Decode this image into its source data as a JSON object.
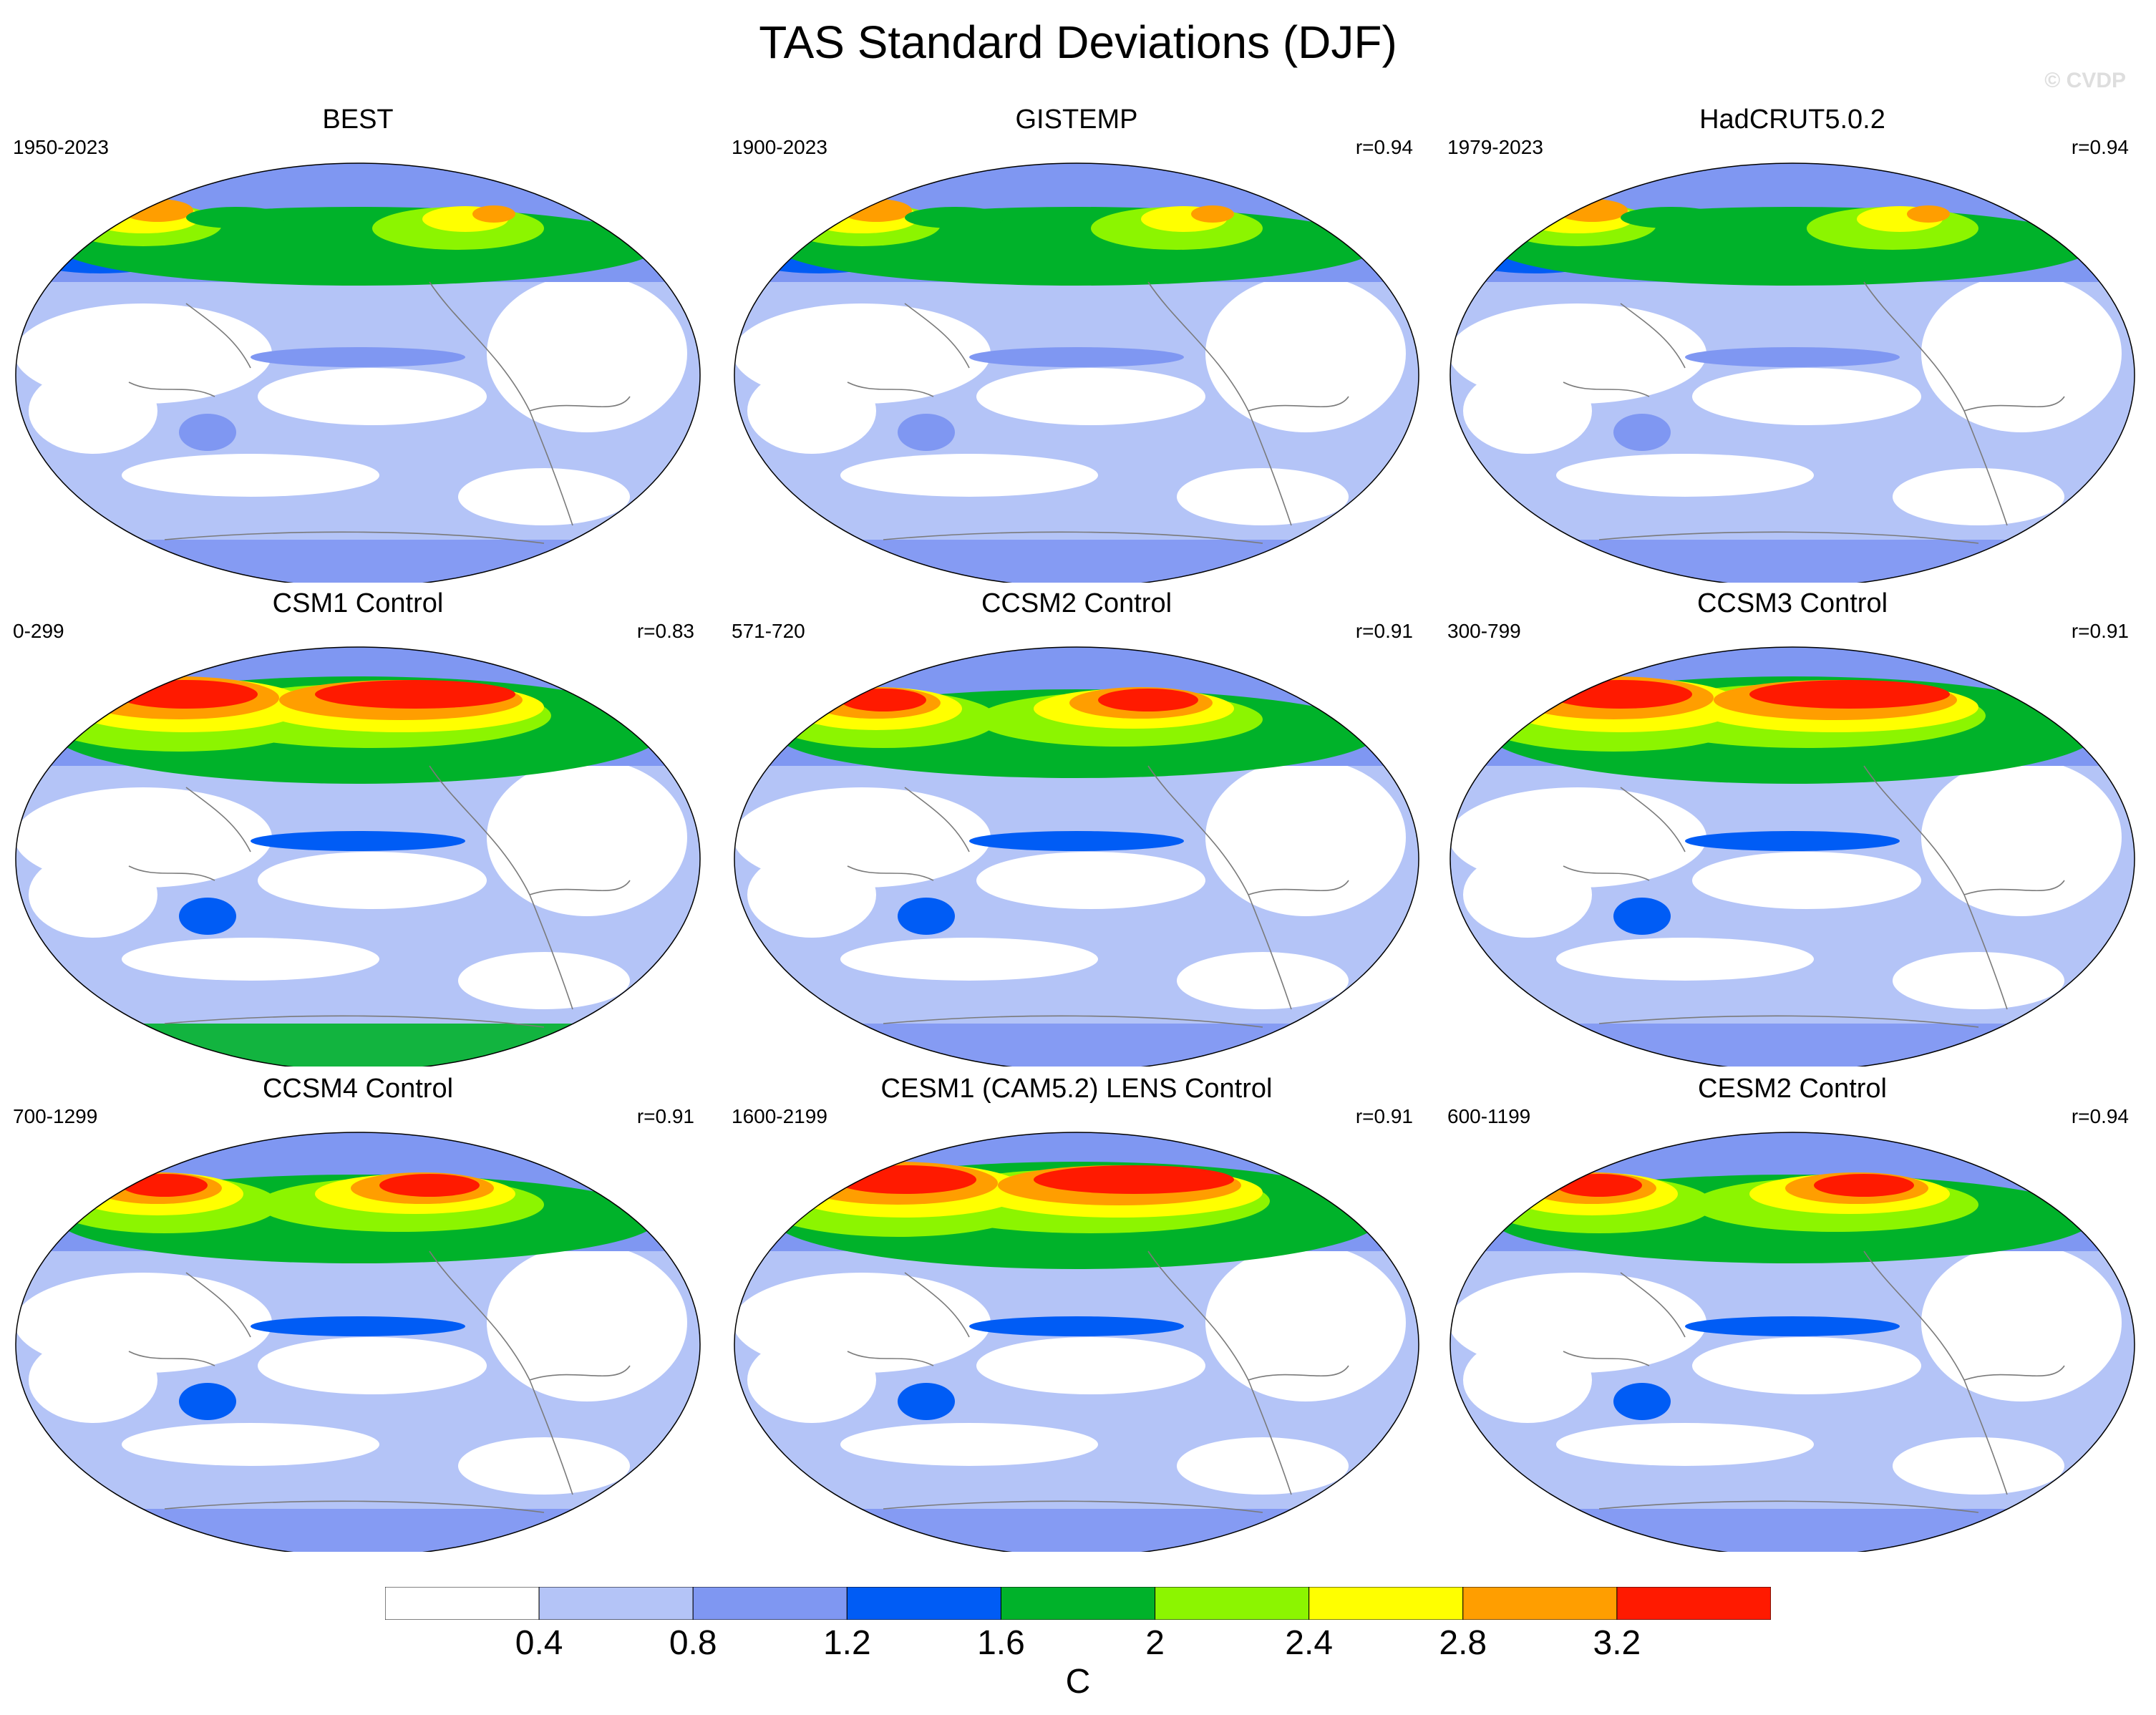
{
  "title": "TAS Standard Deviations (DJF)",
  "watermark": "© CVDP",
  "panels": [
    {
      "title": "BEST",
      "years": "1950-2023",
      "r": ""
    },
    {
      "title": "GISTEMP",
      "years": "1900-2023",
      "r": "r=0.94"
    },
    {
      "title": "HadCRUT5.0.2",
      "years": "1979-2023",
      "r": "r=0.94"
    },
    {
      "title": "CSM1 Control",
      "years": "0-299",
      "r": "r=0.83"
    },
    {
      "title": "CCSM2 Control",
      "years": "571-720",
      "r": "r=0.91"
    },
    {
      "title": "CCSM3 Control",
      "years": "300-799",
      "r": "r=0.91"
    },
    {
      "title": "CCSM4 Control",
      "years": "700-1299",
      "r": "r=0.91"
    },
    {
      "title": "CESM1 (CAM5.2) LENS Control",
      "years": "1600-2199",
      "r": "r=0.91"
    },
    {
      "title": "CESM2 Control",
      "years": "600-1199",
      "r": "r=0.94"
    }
  ],
  "colorbar": {
    "labels": [
      "0.4",
      "0.8",
      "1.2",
      "1.6",
      "2",
      "2.4",
      "2.8",
      "3.2"
    ],
    "colors": [
      "#ffffff",
      "#b4c4f7",
      "#7f97f2",
      "#005cf5",
      "#00b22a",
      "#8cf500",
      "#ffff00",
      "#ff9e00",
      "#ff1a00"
    ],
    "units": "C"
  }
}
